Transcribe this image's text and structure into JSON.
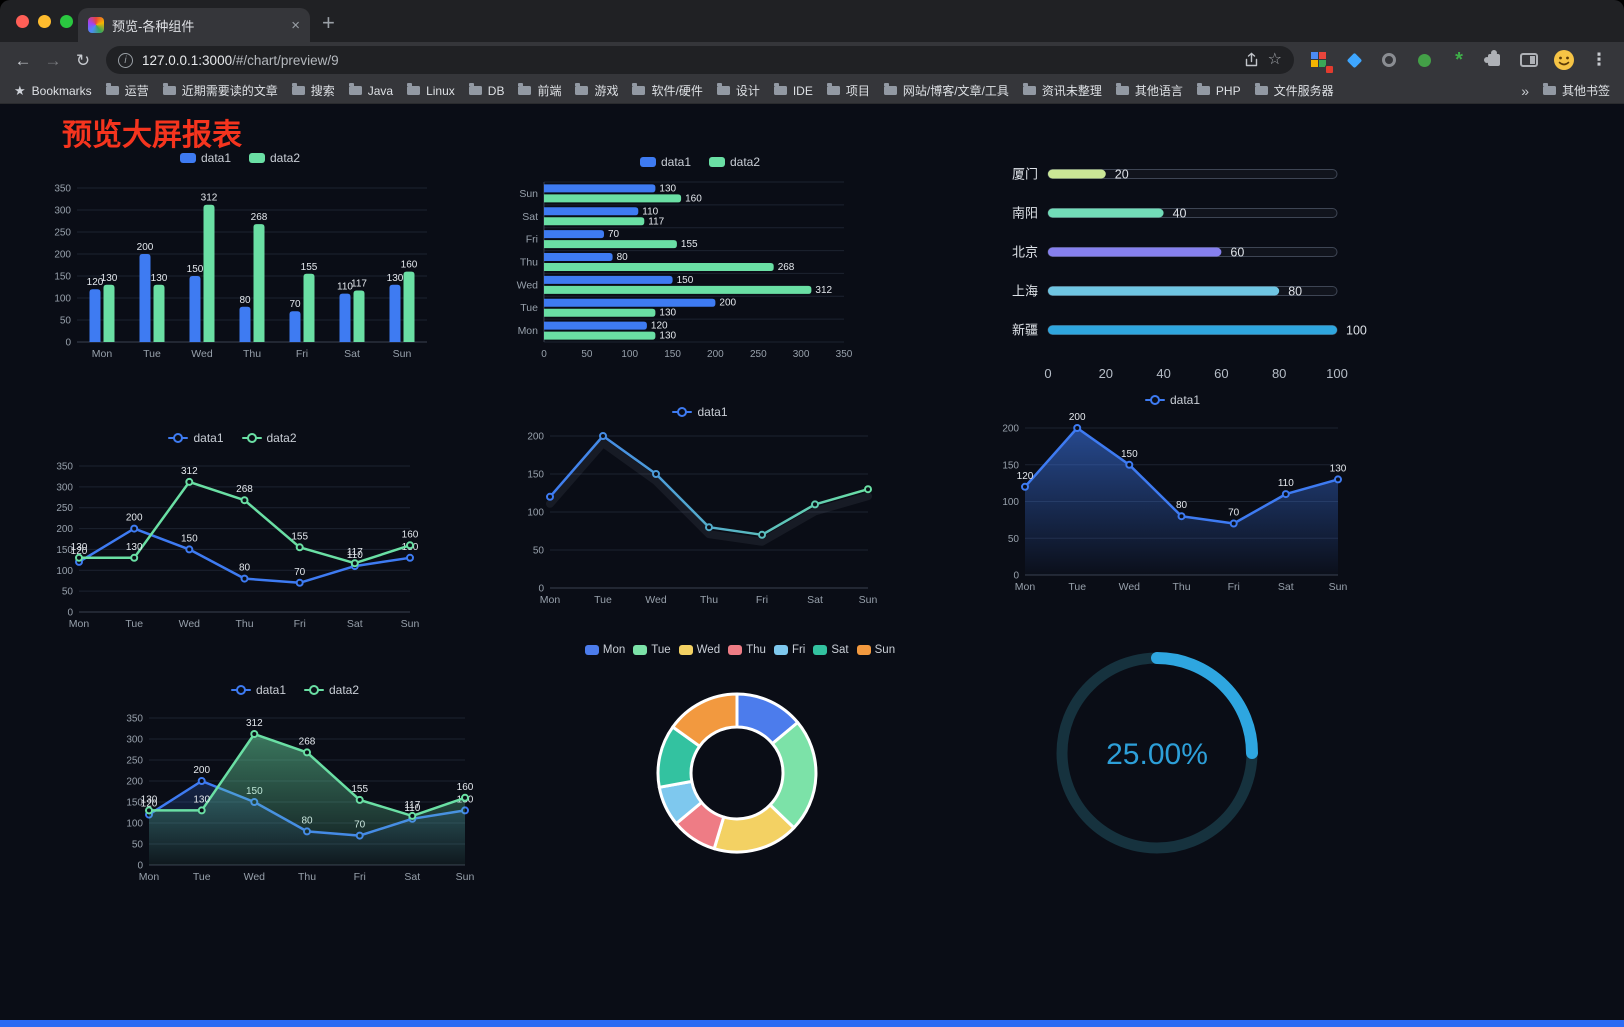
{
  "browser": {
    "tab_title": "预览-各种组件",
    "url_host": "127.0.0.1:3000",
    "url_path": "/#/chart/preview/9",
    "new_tab_label": "+",
    "bookmarks_label": "Bookmarks",
    "bookmarks": [
      "运营",
      "近期需要读的文章",
      "搜索",
      "Java",
      "Linux",
      "DB",
      "前端",
      "游戏",
      "软件/硬件",
      "设计",
      "IDE",
      "项目",
      "网站/博客/文章/工具",
      "资讯未整理",
      "其他语言",
      "PHP",
      "文件服务器"
    ],
    "overflow_chevron": "»",
    "other_bookmarks_label": "其他书签"
  },
  "page": {
    "title": "预览大屏报表",
    "title_color": "#f5341e",
    "background": "#0a0d16",
    "footer_color": "#2b6bf3"
  },
  "chart_data": [
    {
      "type": "bar",
      "categories": [
        "Mon",
        "Tue",
        "Wed",
        "Thu",
        "Fri",
        "Sat",
        "Sun"
      ],
      "ylim": [
        0,
        350
      ],
      "yticks": [
        0,
        50,
        100,
        150,
        200,
        250,
        300,
        350
      ],
      "series": [
        {
          "name": "data1",
          "color": "#3E7BF2",
          "values": [
            120,
            200,
            150,
            80,
            70,
            110,
            130
          ]
        },
        {
          "name": "data2",
          "color": "#6ADFA4",
          "values": [
            130,
            130,
            312,
            268,
            155,
            117,
            160
          ]
        }
      ]
    },
    {
      "type": "bar-horizontal",
      "categories": [
        "Mon",
        "Tue",
        "Wed",
        "Thu",
        "Fri",
        "Sat",
        "Sun"
      ],
      "xlim": [
        0,
        350
      ],
      "xticks": [
        0,
        50,
        100,
        150,
        200,
        250,
        300,
        350
      ],
      "series": [
        {
          "name": "data1",
          "color": "#3E7BF2",
          "values": [
            120,
            200,
            150,
            80,
            70,
            110,
            130
          ]
        },
        {
          "name": "data2",
          "color": "#6ADFA4",
          "values": [
            130,
            130,
            312,
            268,
            155,
            117,
            160
          ]
        }
      ]
    },
    {
      "type": "progress-list",
      "max": 100,
      "xticks": [
        0,
        20,
        40,
        60,
        80,
        100
      ],
      "items": [
        {
          "label": "厦门",
          "value": 20,
          "color": "#CBE796"
        },
        {
          "label": "南阳",
          "value": 40,
          "color": "#72DCB8"
        },
        {
          "label": "北京",
          "value": 60,
          "color": "#8680EE"
        },
        {
          "label": "上海",
          "value": 80,
          "color": "#6FC5E2"
        },
        {
          "label": "新疆",
          "value": 100,
          "color": "#2FA6DE"
        }
      ]
    },
    {
      "type": "line",
      "categories": [
        "Mon",
        "Tue",
        "Wed",
        "Thu",
        "Fri",
        "Sat",
        "Sun"
      ],
      "ylim": [
        0,
        350
      ],
      "yticks": [
        0,
        50,
        100,
        150,
        200,
        250,
        300,
        350
      ],
      "series": [
        {
          "name": "data1",
          "color": "#3E7BF2",
          "values": [
            120,
            200,
            150,
            80,
            70,
            110,
            130
          ],
          "labels": true
        },
        {
          "name": "data2",
          "color": "#6ADFA4",
          "values": [
            130,
            130,
            312,
            268,
            155,
            117,
            160
          ],
          "labels": true
        }
      ]
    },
    {
      "type": "line",
      "categories": [
        "Mon",
        "Tue",
        "Wed",
        "Thu",
        "Fri",
        "Sat",
        "Sun"
      ],
      "ylim": [
        0,
        200
      ],
      "yticks": [
        0,
        50,
        100,
        150,
        200
      ],
      "series": [
        {
          "name": "data1",
          "gradient": [
            "#3E7BF2",
            "#6ADFA4"
          ],
          "values": [
            120,
            200,
            150,
            80,
            70,
            110,
            130
          ],
          "shadow": true
        }
      ]
    },
    {
      "type": "area",
      "categories": [
        "Mon",
        "Tue",
        "Wed",
        "Thu",
        "Fri",
        "Sat",
        "Sun"
      ],
      "ylim": [
        0,
        200
      ],
      "yticks": [
        0,
        50,
        100,
        150,
        200
      ],
      "series": [
        {
          "name": "data1",
          "color": "#3E7BF2",
          "values": [
            120,
            200,
            150,
            80,
            70,
            110,
            130
          ],
          "labels": true,
          "area": [
            "rgba(62,123,242,0.55)",
            "rgba(62,123,242,0.02)"
          ]
        }
      ]
    },
    {
      "type": "line",
      "categories": [
        "Mon",
        "Tue",
        "Wed",
        "Thu",
        "Fri",
        "Sat",
        "Sun"
      ],
      "ylim": [
        0,
        350
      ],
      "yticks": [
        0,
        50,
        100,
        150,
        200,
        250,
        300,
        350
      ],
      "series": [
        {
          "name": "data1",
          "color": "#3E7BF2",
          "values": [
            120,
            200,
            150,
            80,
            70,
            110,
            130
          ],
          "labels": true,
          "area": [
            "rgba(62,123,242,0.22)",
            "rgba(62,123,242,0)"
          ]
        },
        {
          "name": "data2",
          "color": "#6ADFA4",
          "values": [
            130,
            130,
            312,
            268,
            155,
            117,
            160
          ],
          "labels": true,
          "area": [
            "rgba(106,223,164,0.5)",
            "rgba(106,223,164,0.05)"
          ]
        }
      ]
    },
    {
      "type": "pie",
      "categories": [
        "Mon",
        "Tue",
        "Wed",
        "Thu",
        "Fri",
        "Sat",
        "Sun"
      ],
      "values": [
        120,
        200,
        150,
        80,
        70,
        110,
        130
      ],
      "colors": [
        "#4C7CEC",
        "#7CE2A8",
        "#F3D163",
        "#EE7C85",
        "#7EC8EE",
        "#33C2A0",
        "#F2993F"
      ]
    },
    {
      "type": "gauge",
      "value": 25,
      "label": "25.00%",
      "color": "#2EA6E0",
      "track_color": "#16323E",
      "text_color": "#2D9FD8"
    }
  ]
}
